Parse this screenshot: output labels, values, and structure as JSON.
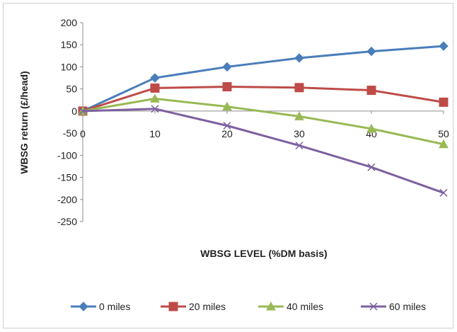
{
  "chart_data": {
    "type": "line",
    "title": "",
    "xlabel": "WBSG LEVEL (%DM basis)",
    "ylabel": "WBSG return (£/head)",
    "x": [
      0,
      10,
      20,
      30,
      40,
      50
    ],
    "xlim": [
      0,
      50
    ],
    "ylim": [
      -250,
      200
    ],
    "xticks": [
      0,
      10,
      20,
      30,
      40,
      50
    ],
    "yticks": [
      200,
      150,
      100,
      50,
      0,
      -50,
      -100,
      -150,
      -200,
      -250
    ],
    "grid": false,
    "legend_position": "bottom",
    "series": [
      {
        "name": "0 miles",
        "color": "#4a7ebb",
        "marker": "diamond",
        "values": [
          0,
          75,
          100,
          120,
          135,
          147
        ]
      },
      {
        "name": "20 miles",
        "color": "#be4b48",
        "marker": "square",
        "values": [
          0,
          52,
          55,
          53,
          47,
          20
        ]
      },
      {
        "name": "40 miles",
        "color": "#98b954",
        "marker": "triangle",
        "values": [
          0,
          28,
          10,
          -12,
          -40,
          -75
        ]
      },
      {
        "name": "60 miles",
        "color": "#7d60a0",
        "marker": "x",
        "values": [
          0,
          5,
          -33,
          -78,
          -127,
          -185
        ]
      }
    ]
  }
}
